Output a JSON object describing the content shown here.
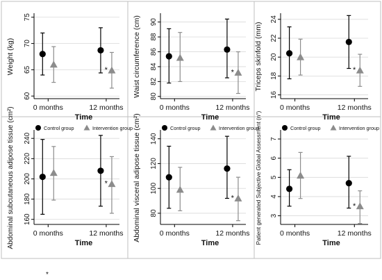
{
  "figure_note": "*",
  "styles": {
    "control_color": "#000000",
    "intervention_color": "#8c8c8c",
    "axis_color": "#000000",
    "grid_color": "#d9d9d9",
    "panel_bg": "#ffffff"
  },
  "chart_data": [
    {
      "type": "scatter",
      "ylabel": "Weight (kg)",
      "xlabel": "Time",
      "categories": [
        "0 months",
        "12 months"
      ],
      "ylim": [
        59.5,
        75.5
      ],
      "yticks": [
        60,
        65,
        70,
        75
      ],
      "legend": null,
      "series": [
        {
          "name": "Control group",
          "marker": "circle",
          "mean": [
            68.0,
            68.7
          ],
          "lower": [
            64.0,
            64.4
          ],
          "upper": [
            72.0,
            73.0
          ]
        },
        {
          "name": "Intervention group",
          "marker": "triangle",
          "mean": [
            66.0,
            64.9
          ],
          "lower": [
            62.6,
            61.5
          ],
          "upper": [
            69.4,
            68.3
          ]
        }
      ],
      "annotations": [
        {
          "text": "*",
          "series": 1,
          "category": 1
        }
      ]
    },
    {
      "type": "scatter",
      "ylabel": "Waist circumference (cm)",
      "xlabel": "Time",
      "categories": [
        "0 months",
        "12 months"
      ],
      "ylim": [
        79.7,
        91.0
      ],
      "yticks": [
        80,
        82,
        84,
        86,
        88,
        90
      ],
      "legend": null,
      "series": [
        {
          "name": "Control group",
          "marker": "circle",
          "mean": [
            85.4,
            86.3
          ],
          "lower": [
            81.8,
            82.5
          ],
          "upper": [
            89.1,
            90.4
          ]
        },
        {
          "name": "Intervention group",
          "marker": "triangle",
          "mean": [
            85.2,
            83.2
          ],
          "lower": [
            82.0,
            80.4
          ],
          "upper": [
            88.6,
            86.0
          ]
        }
      ],
      "annotations": [
        {
          "text": "*",
          "series": 1,
          "category": 1
        }
      ]
    },
    {
      "type": "scatter",
      "ylabel": "Triceps skinfold (mm)",
      "xlabel": "Time",
      "categories": [
        "0 months",
        "12 months"
      ],
      "ylim": [
        15.6,
        24.5
      ],
      "yticks": [
        16,
        18,
        20,
        22,
        24
      ],
      "legend": null,
      "series": [
        {
          "name": "Control group",
          "marker": "circle",
          "mean": [
            20.4,
            21.6
          ],
          "lower": [
            17.7,
            18.8
          ],
          "upper": [
            23.2,
            24.4
          ]
        },
        {
          "name": "Intervention group",
          "marker": "triangle",
          "mean": [
            20.0,
            18.6
          ],
          "lower": [
            18.1,
            16.9
          ],
          "upper": [
            21.9,
            20.3
          ]
        }
      ],
      "annotations": [
        {
          "text": "*",
          "series": 1,
          "category": 1
        }
      ]
    },
    {
      "type": "scatter",
      "ylabel": "Abdominal subcutaneous adipose tissue (cm²)",
      "xlabel": "Time",
      "categories": [
        "0 months",
        "12 months"
      ],
      "ylim": [
        155,
        247
      ],
      "yticks": [
        160,
        180,
        200,
        220,
        240
      ],
      "legend": null,
      "series": [
        {
          "name": "Control group",
          "marker": "circle",
          "mean": [
            202,
            208
          ],
          "lower": [
            165,
            173
          ],
          "upper": [
            239,
            243
          ]
        },
        {
          "name": "Intervention group",
          "marker": "triangle",
          "mean": [
            206,
            195
          ],
          "lower": [
            179,
            166
          ],
          "upper": [
            232,
            222
          ]
        }
      ],
      "annotations": [
        {
          "text": "*",
          "series": 1,
          "category": 1
        }
      ]
    },
    {
      "type": "scatter",
      "ylabel": "Abdominal visceral adipose tissue (cm²)",
      "xlabel": "Time",
      "categories": [
        "0 months",
        "12 months"
      ],
      "ylim": [
        71,
        146
      ],
      "yticks": [
        80,
        100,
        120,
        140
      ],
      "legend": null,
      "series": [
        {
          "name": "Control group",
          "marker": "circle",
          "mean": [
            109,
            116
          ],
          "lower": [
            84,
            92
          ],
          "upper": [
            134,
            142
          ]
        },
        {
          "name": "Intervention group",
          "marker": "triangle",
          "mean": [
            99,
            92
          ],
          "lower": [
            82,
            74
          ],
          "upper": [
            117,
            109
          ]
        }
      ],
      "annotations": [
        {
          "text": "*",
          "series": 1,
          "category": 1
        }
      ]
    },
    {
      "type": "scatter",
      "ylabel": "Patient generated Subjective Global Assessment (n°)",
      "xlabel": "Time",
      "categories": [
        "0 months",
        "12 months"
      ],
      "ylim": [
        2.55,
        7.4
      ],
      "yticks": [
        3,
        4,
        5,
        6,
        7
      ],
      "legend": null,
      "series": [
        {
          "name": "Control group",
          "marker": "circle",
          "mean": [
            4.4,
            4.7
          ],
          "lower": [
            3.5,
            3.4
          ],
          "upper": [
            5.4,
            6.1
          ]
        },
        {
          "name": "Intervention group",
          "marker": "triangle",
          "mean": [
            5.1,
            3.5
          ],
          "lower": [
            3.9,
            2.6
          ],
          "upper": [
            6.3,
            4.3
          ]
        }
      ],
      "annotations": [
        {
          "text": "*",
          "series": 1,
          "category": 1
        }
      ]
    }
  ]
}
